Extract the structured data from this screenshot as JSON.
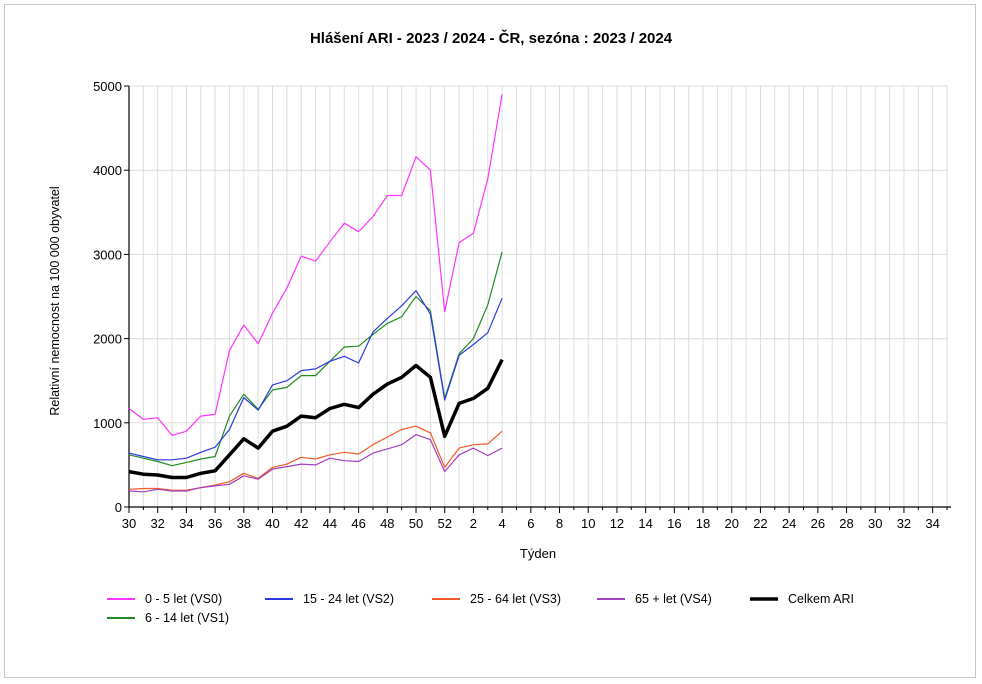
{
  "chart_data": {
    "type": "line",
    "title": "Hlášení ARI - 2023 / 2024 - ČR, sezóna : 2023 / 2024",
    "xlabel": "Týden",
    "ylabel": "Relativní nemocnost na 100 000 obyvatel",
    "ylim": [
      0,
      5000
    ],
    "yticks": [
      "0",
      "1000",
      "2000",
      "3000",
      "4000",
      "5000"
    ],
    "weeks": [
      30,
      31,
      32,
      33,
      34,
      35,
      36,
      37,
      38,
      39,
      40,
      41,
      42,
      43,
      44,
      45,
      46,
      47,
      48,
      49,
      50,
      51,
      52,
      1,
      2,
      3,
      4,
      5,
      6,
      7,
      8,
      9,
      10,
      11,
      12,
      13,
      14,
      15,
      16,
      17,
      18,
      19,
      20,
      21,
      22,
      23,
      24,
      25,
      26,
      27,
      28,
      29,
      30,
      31,
      32,
      33,
      34,
      35
    ],
    "xtick_labels": [
      "30",
      "32",
      "34",
      "36",
      "38",
      "40",
      "42",
      "44",
      "46",
      "48",
      "50",
      "52",
      "2",
      "4",
      "6",
      "8",
      "10",
      "12",
      "14",
      "16",
      "18",
      "20",
      "22",
      "24",
      "26",
      "28",
      "30",
      "32",
      "34"
    ],
    "grid": true,
    "legend_position": "bottom",
    "series": [
      {
        "name": "0 - 5 let (VS0)",
        "color": "#ff33ff",
        "width": 1.2,
        "values": [
          1170,
          1040,
          1060,
          850,
          900,
          1080,
          1100,
          1860,
          2160,
          1940,
          2300,
          2600,
          2980,
          2920,
          3150,
          3370,
          3270,
          3450,
          3700,
          3700,
          4160,
          4000,
          2320,
          3140,
          3250,
          3900,
          4900
        ]
      },
      {
        "name": "6 - 14 let (VS1)",
        "color": "#228b22",
        "width": 1.2,
        "values": [
          620,
          580,
          540,
          490,
          530,
          570,
          600,
          1080,
          1340,
          1160,
          1390,
          1420,
          1560,
          1560,
          1730,
          1900,
          1910,
          2050,
          2180,
          2260,
          2500,
          2330,
          1290,
          1820,
          2000,
          2400,
          3030
        ]
      },
      {
        "name": "15 - 24 let (VS2)",
        "color": "#2a3ae0",
        "width": 1.2,
        "values": [
          640,
          600,
          560,
          560,
          580,
          650,
          710,
          920,
          1300,
          1150,
          1450,
          1500,
          1620,
          1640,
          1730,
          1790,
          1710,
          2080,
          2240,
          2390,
          2570,
          2290,
          1270,
          1800,
          1930,
          2070,
          2480
        ]
      },
      {
        "name": "25 - 64 let (VS3)",
        "color": "#f05a28",
        "width": 1.2,
        "values": [
          210,
          220,
          220,
          200,
          200,
          230,
          260,
          300,
          400,
          340,
          470,
          510,
          590,
          570,
          620,
          650,
          630,
          740,
          830,
          920,
          960,
          880,
          470,
          700,
          740,
          750,
          900
        ]
      },
      {
        "name": "65 + let (VS4)",
        "color": "#a040c0",
        "width": 1.2,
        "values": [
          190,
          180,
          210,
          190,
          190,
          230,
          250,
          270,
          370,
          330,
          450,
          480,
          510,
          500,
          580,
          550,
          540,
          640,
          690,
          740,
          860,
          800,
          420,
          620,
          700,
          610,
          700
        ]
      },
      {
        "name": "Celkem ARI",
        "color": "#000000",
        "width": 3.5,
        "values": [
          420,
          390,
          380,
          350,
          350,
          400,
          430,
          620,
          810,
          700,
          900,
          960,
          1080,
          1060,
          1170,
          1220,
          1180,
          1340,
          1460,
          1540,
          1680,
          1540,
          840,
          1230,
          1290,
          1410,
          1750
        ]
      }
    ],
    "legend_order": [
      [
        "0 - 5 let (VS0)",
        "15 - 24 let (VS2)",
        "25 - 64 let (VS3)",
        "65 + let (VS4)",
        "Celkem ARI"
      ],
      [
        "6 - 14 let (VS1)"
      ]
    ]
  }
}
